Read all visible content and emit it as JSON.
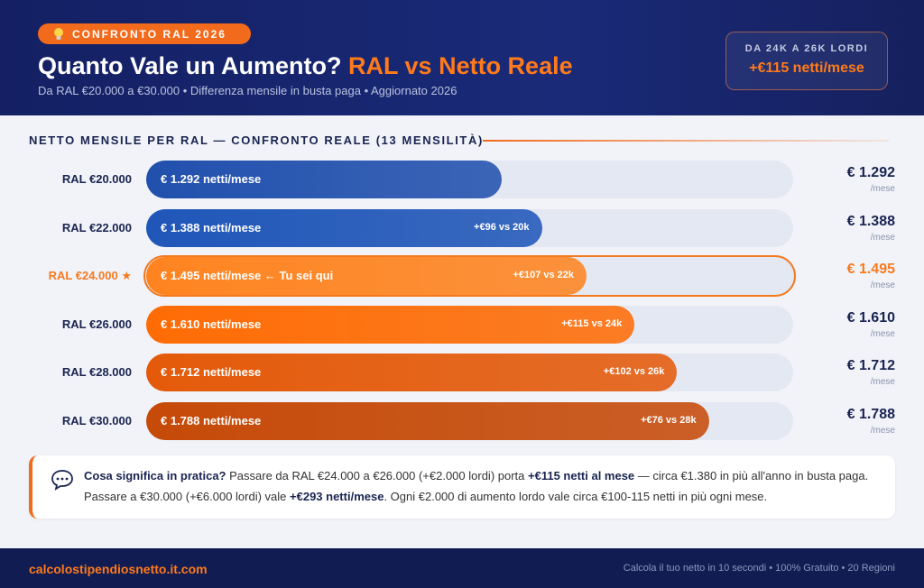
{
  "header": {
    "badge": "CONFRONTO RAL 2026",
    "title_main": "Quanto Vale un Aumento?",
    "title_accent": "RAL vs Netto Reale",
    "subtitle": "Da RAL €20.000 a €30.000 • Differenza mensile in busta paga • Aggiornato 2026",
    "callout_label": "DA 24K A 26K LORDI",
    "callout_value": "+€115 netti/mese"
  },
  "chart_data": {
    "type": "bar",
    "orientation": "horizontal",
    "title": "NETTO MENSILE PER RAL — CONFRONTO REALE (13 MENSILITÀ)",
    "categories": [
      "RAL €20.000",
      "RAL €22.000",
      "RAL €24.000 ★",
      "RAL €26.000",
      "RAL €28.000",
      "RAL €30.000"
    ],
    "values": [
      1292,
      1388,
      1495,
      1610,
      1712,
      1788
    ],
    "value_labels": [
      "€ 1.292",
      "€ 1.388",
      "€ 1.495",
      "€ 1.610",
      "€ 1.712",
      "€ 1.788"
    ],
    "bar_labels": [
      "€ 1.292 netti/mese",
      "€ 1.388 netti/mese",
      "€ 1.495 netti/mese ← Tu sei qui",
      "€ 1.610 netti/mese",
      "€ 1.712 netti/mese",
      "€ 1.788 netti/mese"
    ],
    "delta_labels": [
      null,
      "+€96 vs 20k",
      "+€107 vs 22k",
      "+€115 vs 24k",
      "+€102 vs 26k",
      "+€76 vs 28k"
    ],
    "unit": "/mese",
    "colors": [
      "#2150ad",
      "#1f56b8",
      "#ff8420",
      "#ff6c05",
      "#e45a0a",
      "#c64a08"
    ],
    "highlight": 2,
    "highlight_color": "#f57a1f",
    "xlim": [
      440,
      1990
    ]
  },
  "note": {
    "heading": "Cosa significa in pratica?",
    "line1a": " Passare da RAL €24.000 a €26.000 (+€2.000 lordi) porta ",
    "line1b": "+€115 netti al mese",
    "line1c": " — circa €1.380 in più all'anno in busta paga.",
    "line2a": "Passare a €30.000 (+€6.000 lordi) vale ",
    "line2b": "+€293 netti/mese",
    "line2c": ". Ogni €2.000 di aumento lordo vale circa €100-115 netti in più ogni mese."
  },
  "footer": {
    "site": "calcolostipendiosnetto.it.com",
    "tagline": "Calcola il tuo netto in 10 secondi • 100% Gratuito • 20 Regioni"
  }
}
